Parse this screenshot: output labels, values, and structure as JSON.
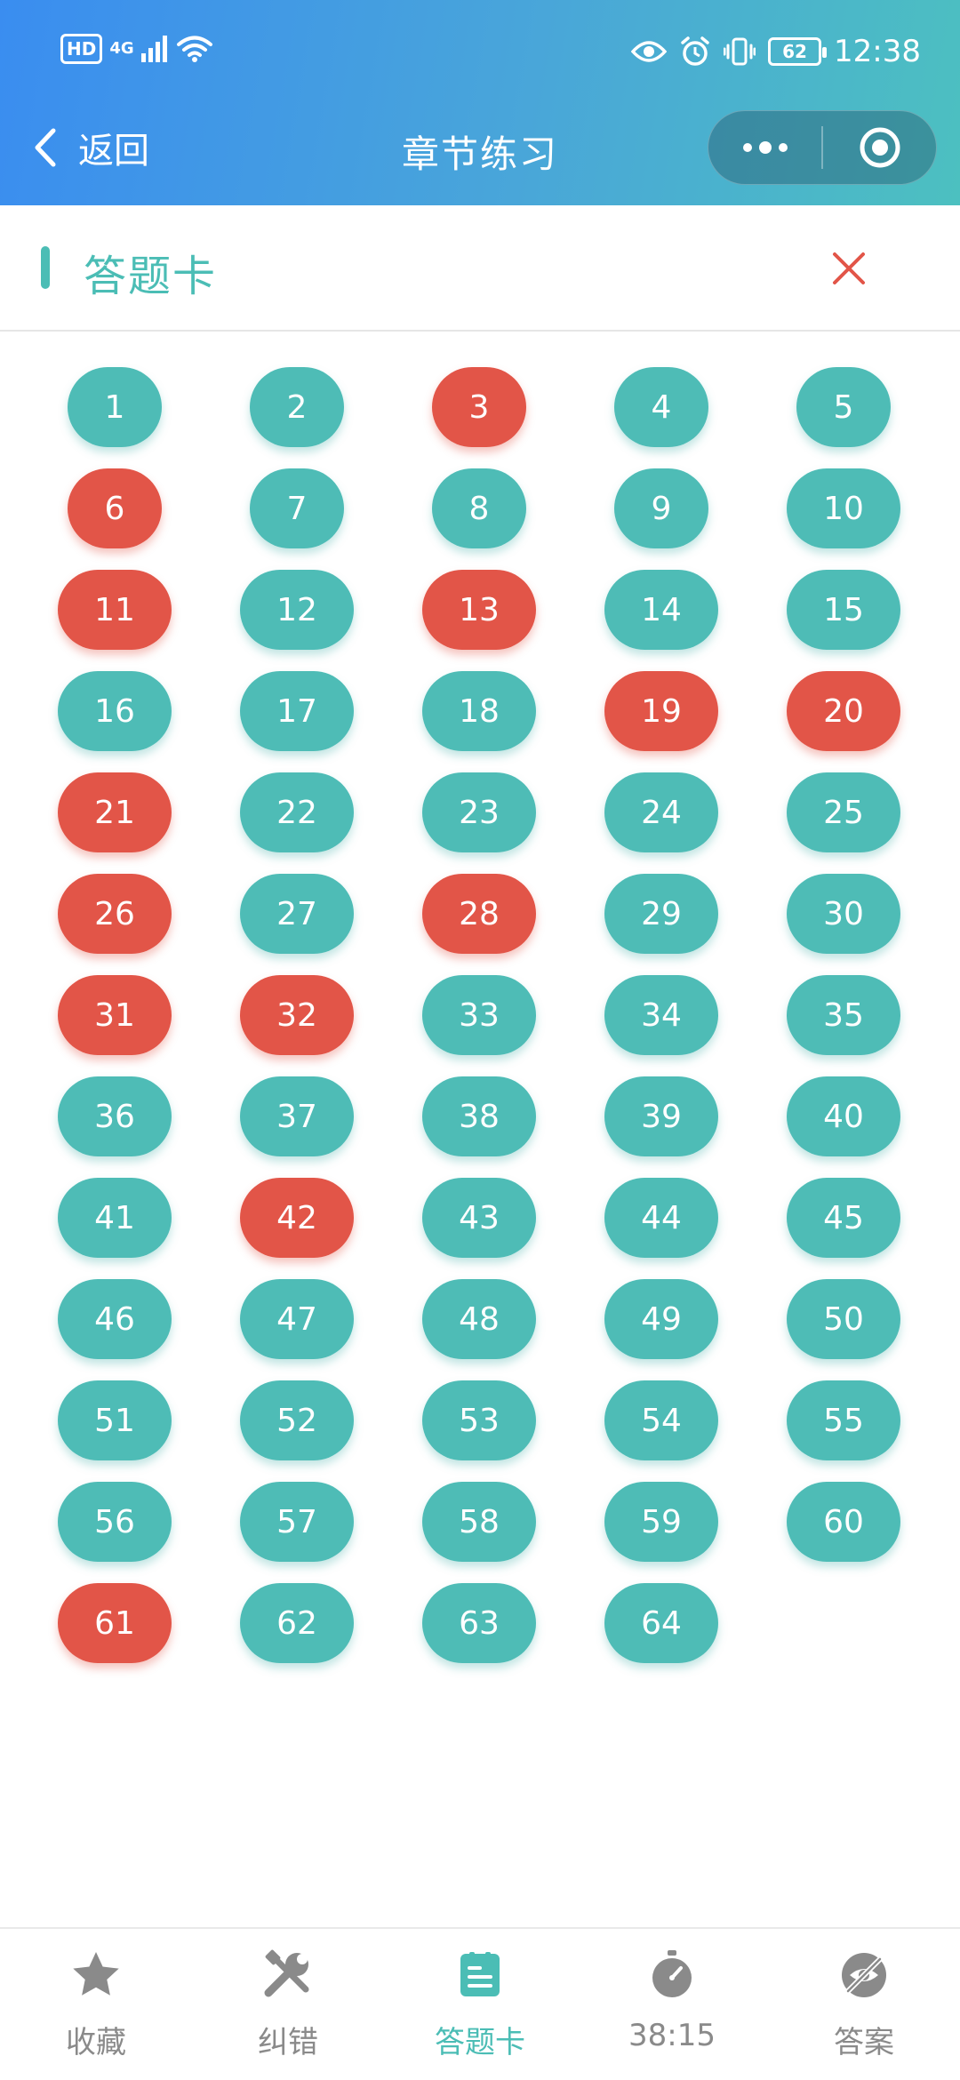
{
  "status_bar": {
    "hd": "HD",
    "network": "4G",
    "battery": "62",
    "time": "12:38"
  },
  "navbar": {
    "back_label": "返回",
    "title": "章节练习"
  },
  "card": {
    "title": "答题卡"
  },
  "colors": {
    "correct": "#4ebcb6",
    "wrong": "#e25548",
    "accent": "#4bbdb5"
  },
  "questions": [
    {
      "n": "1",
      "s": "ok"
    },
    {
      "n": "2",
      "s": "ok"
    },
    {
      "n": "3",
      "s": "wrong"
    },
    {
      "n": "4",
      "s": "ok"
    },
    {
      "n": "5",
      "s": "ok"
    },
    {
      "n": "6",
      "s": "wrong"
    },
    {
      "n": "7",
      "s": "ok"
    },
    {
      "n": "8",
      "s": "ok"
    },
    {
      "n": "9",
      "s": "ok"
    },
    {
      "n": "10",
      "s": "ok"
    },
    {
      "n": "11",
      "s": "wrong"
    },
    {
      "n": "12",
      "s": "ok"
    },
    {
      "n": "13",
      "s": "wrong"
    },
    {
      "n": "14",
      "s": "ok"
    },
    {
      "n": "15",
      "s": "ok"
    },
    {
      "n": "16",
      "s": "ok"
    },
    {
      "n": "17",
      "s": "ok"
    },
    {
      "n": "18",
      "s": "ok"
    },
    {
      "n": "19",
      "s": "wrong"
    },
    {
      "n": "20",
      "s": "wrong"
    },
    {
      "n": "21",
      "s": "wrong"
    },
    {
      "n": "22",
      "s": "ok"
    },
    {
      "n": "23",
      "s": "ok"
    },
    {
      "n": "24",
      "s": "ok"
    },
    {
      "n": "25",
      "s": "ok"
    },
    {
      "n": "26",
      "s": "wrong"
    },
    {
      "n": "27",
      "s": "ok"
    },
    {
      "n": "28",
      "s": "wrong"
    },
    {
      "n": "29",
      "s": "ok"
    },
    {
      "n": "30",
      "s": "ok"
    },
    {
      "n": "31",
      "s": "wrong"
    },
    {
      "n": "32",
      "s": "wrong"
    },
    {
      "n": "33",
      "s": "ok"
    },
    {
      "n": "34",
      "s": "ok"
    },
    {
      "n": "35",
      "s": "ok"
    },
    {
      "n": "36",
      "s": "ok"
    },
    {
      "n": "37",
      "s": "ok"
    },
    {
      "n": "38",
      "s": "ok"
    },
    {
      "n": "39",
      "s": "ok"
    },
    {
      "n": "40",
      "s": "ok"
    },
    {
      "n": "41",
      "s": "ok"
    },
    {
      "n": "42",
      "s": "wrong"
    },
    {
      "n": "43",
      "s": "ok"
    },
    {
      "n": "44",
      "s": "ok"
    },
    {
      "n": "45",
      "s": "ok"
    },
    {
      "n": "46",
      "s": "ok"
    },
    {
      "n": "47",
      "s": "ok"
    },
    {
      "n": "48",
      "s": "ok"
    },
    {
      "n": "49",
      "s": "ok"
    },
    {
      "n": "50",
      "s": "ok"
    },
    {
      "n": "51",
      "s": "ok"
    },
    {
      "n": "52",
      "s": "ok"
    },
    {
      "n": "53",
      "s": "ok"
    },
    {
      "n": "54",
      "s": "ok"
    },
    {
      "n": "55",
      "s": "ok"
    },
    {
      "n": "56",
      "s": "ok"
    },
    {
      "n": "57",
      "s": "ok"
    },
    {
      "n": "58",
      "s": "ok"
    },
    {
      "n": "59",
      "s": "ok"
    },
    {
      "n": "60",
      "s": "ok"
    },
    {
      "n": "61",
      "s": "wrong"
    },
    {
      "n": "62",
      "s": "ok"
    },
    {
      "n": "63",
      "s": "ok"
    },
    {
      "n": "64",
      "s": "ok"
    }
  ],
  "bottom_tabs": [
    {
      "label": "收藏",
      "icon": "star-icon"
    },
    {
      "label": "纠错",
      "icon": "tools-icon"
    },
    {
      "label": "答题卡",
      "icon": "answer-card-icon"
    },
    {
      "label": "38:15",
      "icon": "stopwatch-icon"
    },
    {
      "label": "答案",
      "icon": "eye-off-icon"
    }
  ]
}
